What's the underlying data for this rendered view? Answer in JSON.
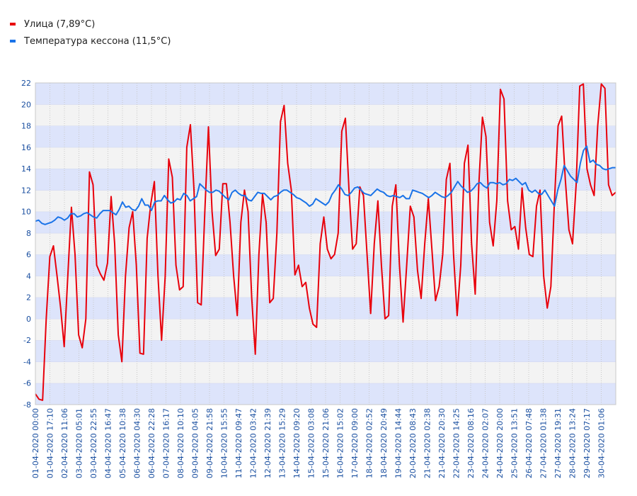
{
  "colors": {
    "series_street": "#e8000b",
    "series_caisson": "#1a73e8",
    "band_blue": "#dde4fb",
    "band_grey": "#f3f3f3",
    "grid": "#c8c8c8",
    "axis_text": "#1a4fa0"
  },
  "chart_data": {
    "type": "line",
    "legend_position": "top-left",
    "grid": true,
    "ylim": [
      -8,
      22
    ],
    "yticks": [
      -8,
      -6,
      -4,
      -2,
      0,
      2,
      4,
      6,
      8,
      10,
      12,
      14,
      16,
      18,
      20,
      22
    ],
    "xticks": [
      "01-04-2020 00:00",
      "01-04-2020 17:10",
      "02-04-2020 11:06",
      "03-04-2020 05:01",
      "03-04-2020 22:55",
      "04-04-2020 16:47",
      "05-04-2020 10:38",
      "06-04-2020 04:30",
      "06-04-2020 22:28",
      "07-04-2020 16:17",
      "08-04-2020 10:10",
      "09-04-2020 04:05",
      "09-04-2020 21:58",
      "10-04-2020 15:55",
      "11-04-2020 09:47",
      "12-04-2020 03:42",
      "12-04-2020 21:39",
      "13-04-2020 15:29",
      "14-04-2020 09:20",
      "15-04-2020 03:08",
      "15-04-2020 21:06",
      "16-04-2020 15:02",
      "17-04-2020 09:00",
      "18-04-2020 02:52",
      "18-04-2020 20:49",
      "19-04-2020 14:44",
      "20-04-2020 08:43",
      "21-04-2020 02:38",
      "21-04-2020 20:30",
      "22-04-2020 14:25",
      "23-04-2020 08:16",
      "24-04-2020 02:07",
      "24-04-2020 20:00",
      "25-04-2020 13:51",
      "26-04-2020 07:48",
      "27-04-2020 01:38",
      "27-04-2020 19:31",
      "28-04-2020 13:24",
      "29-04-2020 07:17",
      "30-04-2020 01:06"
    ],
    "series": [
      {
        "name": "Улица (7,89°C)",
        "values": [
          -7,
          -7.5,
          -7.6,
          0,
          5.8,
          6.8,
          4,
          1,
          -2.6,
          4,
          10.4,
          6,
          -1.5,
          -2.7,
          0,
          13.7,
          12.5,
          5,
          4.2,
          3.6,
          5.2,
          11.4,
          7,
          -1.5,
          -4,
          4,
          8.5,
          10,
          5,
          -3.2,
          -3.3,
          7.5,
          10.7,
          12.8,
          4,
          -2,
          4,
          14.9,
          13.2,
          5,
          2.7,
          3,
          16,
          18.1,
          12,
          1.5,
          1.3,
          10,
          17.9,
          10,
          5.9,
          6.5,
          12.6,
          12.6,
          9,
          4,
          0.3,
          9,
          12,
          10,
          2,
          -3.3,
          6,
          11.6,
          9,
          1.5,
          1.9,
          8,
          18.4,
          19.9,
          14.5,
          12,
          4.1,
          5,
          3,
          3.4,
          1,
          -0.5,
          -0.8,
          7,
          9.5,
          6.5,
          5.6,
          6,
          8,
          17.5,
          18.7,
          12,
          6.5,
          7,
          12.3,
          11.5,
          6,
          0.5,
          7,
          11,
          5,
          0,
          0.3,
          10.5,
          12.5,
          5,
          -0.3,
          5,
          10.5,
          9.5,
          4.5,
          1.9,
          7,
          11.2,
          6.5,
          1.7,
          3,
          6,
          13,
          14.5,
          6,
          0.3,
          5,
          14.5,
          16.2,
          7,
          2.3,
          12.5,
          18.8,
          17,
          9,
          6.8,
          11,
          21.4,
          20.5,
          11,
          8.3,
          8.6,
          6.5,
          12.2,
          8.5,
          6,
          5.8,
          10.5,
          12,
          4,
          1,
          3,
          11,
          18,
          18.9,
          13,
          8.3,
          7,
          12.5,
          21.7,
          21.9,
          14,
          12.5,
          11.5,
          18,
          21.9,
          21.5,
          12.5,
          11.5,
          11.8
        ]
      },
      {
        "name": "Температура кессона (11,5°C)",
        "values": [
          9.1,
          9.2,
          8.9,
          8.8,
          8.9,
          9,
          9.2,
          9.5,
          9.4,
          9.2,
          9.4,
          9.8,
          9.8,
          9.5,
          9.6,
          9.8,
          9.9,
          9.7,
          9.5,
          9.4,
          9.8,
          10.1,
          10.1,
          10.1,
          9.9,
          9.7,
          10.2,
          10.9,
          10.4,
          10.5,
          10.2,
          10.1,
          10.5,
          11.2,
          10.6,
          10.6,
          10.1,
          10.9,
          11,
          11,
          11.5,
          11.1,
          10.8,
          10.9,
          11.2,
          11.1,
          11.7,
          11.5,
          11,
          11.2,
          11.4,
          12.6,
          12.3,
          12,
          11.8,
          11.8,
          12,
          11.9,
          11.6,
          11.3,
          11.1,
          11.8,
          12,
          11.7,
          11.5,
          11.5,
          11.1,
          11,
          11.4,
          11.8,
          11.7,
          11.7,
          11.4,
          11.1,
          11.4,
          11.5,
          11.8,
          12,
          12,
          11.8,
          11.6,
          11.3,
          11.2,
          11,
          10.8,
          10.5,
          10.7,
          11.2,
          11,
          10.8,
          10.6,
          10.9,
          11.6,
          12,
          12.5,
          12.1,
          11.6,
          11.5,
          11.8,
          12.2,
          12.3,
          12,
          11.7,
          11.6,
          11.5,
          11.8,
          12.1,
          11.9,
          11.8,
          11.5,
          11.4,
          11.5,
          11.4,
          11.3,
          11.5,
          11.2,
          11.2,
          12,
          11.9,
          11.8,
          11.7,
          11.5,
          11.3,
          11.5,
          11.8,
          11.6,
          11.4,
          11.3,
          11.5,
          11.8,
          12.3,
          12.8,
          12.4,
          12.1,
          11.8,
          11.9,
          12.2,
          12.6,
          12.7,
          12.4,
          12.2,
          12.7,
          12.7,
          12.6,
          12.7,
          12.5,
          12.6,
          13,
          12.9,
          13.1,
          12.8,
          12.5,
          12.7,
          12,
          11.8,
          12,
          11.7,
          11.6,
          12,
          11.5,
          11,
          10.5,
          12,
          13,
          14.3,
          13.8,
          13.3,
          13,
          12.7,
          14.5,
          15.7,
          16.1,
          14.6,
          14.8,
          14.4,
          14.3,
          14,
          13.9,
          14,
          14.1,
          14.1
        ]
      }
    ]
  }
}
